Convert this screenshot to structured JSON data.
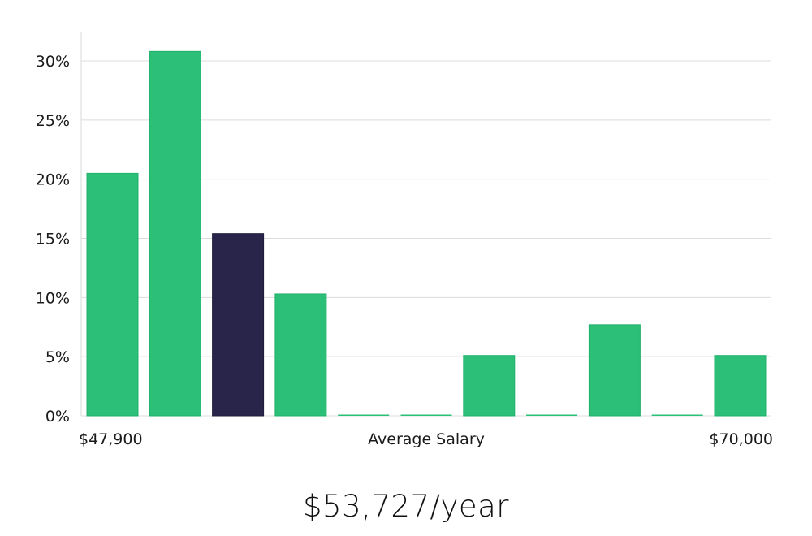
{
  "chart_data": {
    "type": "bar",
    "title": "",
    "xlabel": "Average Salary",
    "ylabel": "",
    "x_min_label": "$47,900",
    "x_max_label": "$70,000",
    "ylim": [
      0,
      32
    ],
    "y_ticks": [
      0,
      5,
      10,
      15,
      20,
      25,
      30
    ],
    "y_tick_labels": [
      "0%",
      "5%",
      "10%",
      "15%",
      "20%",
      "25%",
      "30%"
    ],
    "values": [
      20.5,
      30.8,
      15.4,
      10.3,
      0,
      0,
      5.1,
      0,
      7.7,
      0,
      5.1
    ],
    "highlight_index": 2,
    "grid": true
  },
  "colors": {
    "bar": "#2bbf78",
    "bar_edge": "#22b06c",
    "highlight": "#29254a",
    "grid": "#dcdcdc",
    "axis": "#d9d9d9"
  },
  "summary": {
    "average_salary": "$53,727/year"
  }
}
